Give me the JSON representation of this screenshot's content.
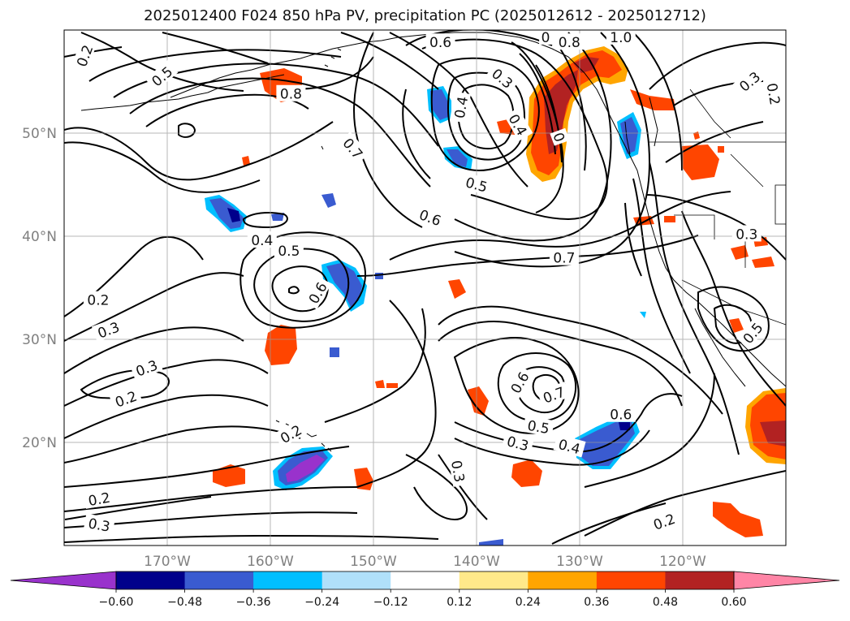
{
  "title": "2025012400 F024 850 hPa PV, precipitation PC (2025012612 - 2025012712)",
  "map": {
    "lon_range": [
      -180,
      -110
    ],
    "lat_range": [
      10,
      60
    ],
    "lat_ticks": [
      {
        "lat": 50,
        "label": "50°N"
      },
      {
        "lat": 40,
        "label": "40°N"
      },
      {
        "lat": 30,
        "label": "30°N"
      },
      {
        "lat": 20,
        "label": "20°N"
      }
    ],
    "lon_ticks": [
      {
        "lon": -170,
        "label": "170°W"
      },
      {
        "lon": -160,
        "label": "160°W"
      },
      {
        "lon": -150,
        "label": "150°W"
      },
      {
        "lon": -140,
        "label": "140°W"
      },
      {
        "lon": -130,
        "label": "130°W"
      },
      {
        "lon": -120,
        "label": "120°W"
      }
    ],
    "grid": true,
    "contour_labels": [
      {
        "lon": -178.0,
        "lat": 57.5,
        "text": "0.2",
        "rot": -70
      },
      {
        "lon": -170.5,
        "lat": 55.5,
        "text": "0.5",
        "rot": -40
      },
      {
        "lon": -158.0,
        "lat": 53.8,
        "text": "0.8",
        "rot": 0
      },
      {
        "lon": -152.0,
        "lat": 48.5,
        "text": "0.7",
        "rot": 50
      },
      {
        "lon": -143.5,
        "lat": 58.8,
        "text": "0.6",
        "rot": 0
      },
      {
        "lon": -141.5,
        "lat": 52.5,
        "text": "0.4",
        "rot": -80
      },
      {
        "lon": -137.5,
        "lat": 55.3,
        "text": "0.3",
        "rot": 40
      },
      {
        "lon": -136.0,
        "lat": 50.8,
        "text": "0.4",
        "rot": 60
      },
      {
        "lon": -133.3,
        "lat": 59.3,
        "text": "0",
        "rot": 0
      },
      {
        "lon": -131.0,
        "lat": 58.8,
        "text": "0.8",
        "rot": 0
      },
      {
        "lon": -126.0,
        "lat": 59.3,
        "text": "1.0",
        "rot": 0
      },
      {
        "lon": -132.0,
        "lat": 49.6,
        "text": "0",
        "rot": 70
      },
      {
        "lon": -140.0,
        "lat": 45.0,
        "text": "0.5",
        "rot": 15
      },
      {
        "lon": -144.5,
        "lat": 41.8,
        "text": "0.6",
        "rot": 20
      },
      {
        "lon": -158.2,
        "lat": 38.6,
        "text": "0.5",
        "rot": 0
      },
      {
        "lon": -160.8,
        "lat": 39.6,
        "text": "0.4",
        "rot": 0
      },
      {
        "lon": -155.4,
        "lat": 34.5,
        "text": "0.6",
        "rot": -60
      },
      {
        "lon": -131.5,
        "lat": 37.9,
        "text": "0.7",
        "rot": 0
      },
      {
        "lon": -176.7,
        "lat": 33.8,
        "text": "0.2",
        "rot": 0
      },
      {
        "lon": -175.7,
        "lat": 30.9,
        "text": "0.3",
        "rot": -20
      },
      {
        "lon": -172.0,
        "lat": 27.2,
        "text": "0.3",
        "rot": -20
      },
      {
        "lon": -174.0,
        "lat": 24.2,
        "text": "0.2",
        "rot": -20
      },
      {
        "lon": -158.0,
        "lat": 20.8,
        "text": "0.2",
        "rot": -30
      },
      {
        "lon": -135.8,
        "lat": 25.8,
        "text": "0.6",
        "rot": -60
      },
      {
        "lon": -132.5,
        "lat": 24.6,
        "text": "0.7",
        "rot": -20
      },
      {
        "lon": -134.0,
        "lat": 21.5,
        "text": "0.5",
        "rot": 10
      },
      {
        "lon": -126.0,
        "lat": 22.7,
        "text": "0.6",
        "rot": 0
      },
      {
        "lon": -136.0,
        "lat": 19.9,
        "text": "0.3",
        "rot": 15
      },
      {
        "lon": -131.0,
        "lat": 19.6,
        "text": "0.4",
        "rot": 15
      },
      {
        "lon": -141.8,
        "lat": 17.2,
        "text": "0.3",
        "rot": 80
      },
      {
        "lon": -176.6,
        "lat": 14.5,
        "text": "0.2",
        "rot": -10
      },
      {
        "lon": -176.6,
        "lat": 12.0,
        "text": "0.3",
        "rot": 10
      },
      {
        "lon": -121.8,
        "lat": 12.3,
        "text": "0.2",
        "rot": -20
      },
      {
        "lon": -113.8,
        "lat": 40.2,
        "text": "0.3",
        "rot": 0
      },
      {
        "lon": -113.2,
        "lat": 30.6,
        "text": "0.5",
        "rot": -50
      },
      {
        "lon": -111.2,
        "lat": 53.8,
        "text": "0.2",
        "rot": 80
      },
      {
        "lon": -113.5,
        "lat": 55.0,
        "text": "0.3",
        "rot": -40
      }
    ]
  },
  "colorbar": {
    "colors": [
      "#9932cc",
      "#00008b",
      "#3a5bd0",
      "#00bfff",
      "#b0e0fa",
      "#ffffff",
      "#ffe98a",
      "#ffa500",
      "#ff4500",
      "#b22222",
      "#ff85a6"
    ],
    "tick_labels": [
      "−0.60",
      "−0.48",
      "−0.36",
      "−0.24",
      "−0.12",
      "0.12",
      "0.24",
      "0.36",
      "0.48",
      "0.60"
    ]
  }
}
